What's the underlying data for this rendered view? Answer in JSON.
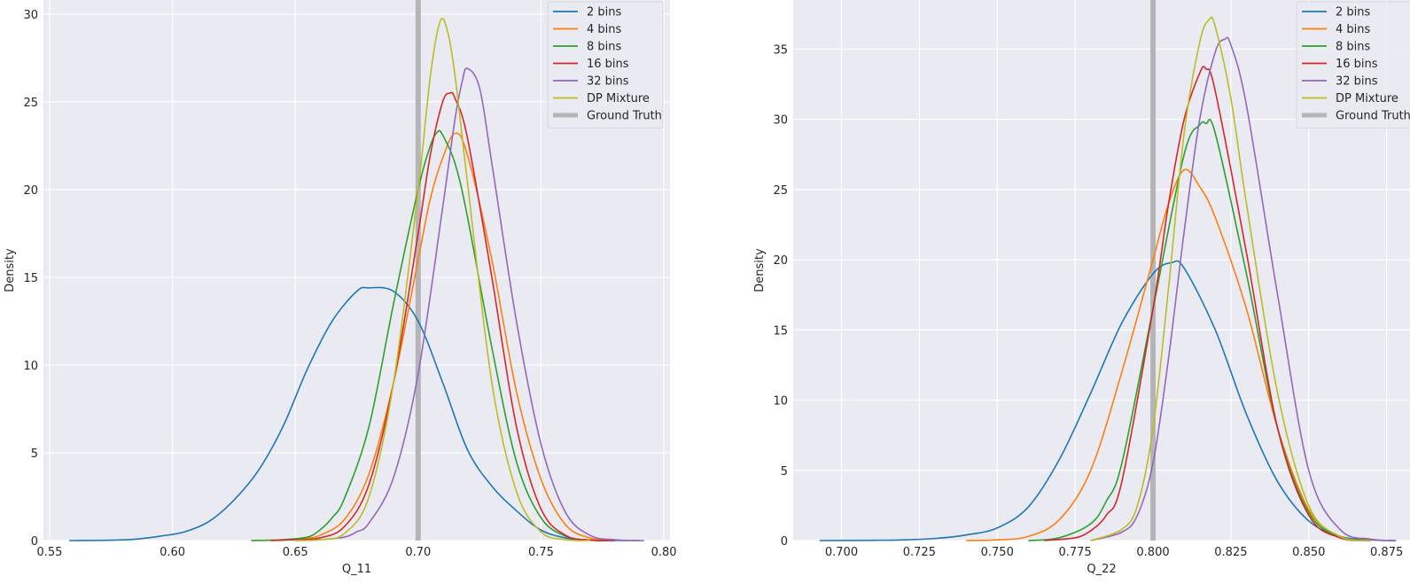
{
  "chart_data": [
    {
      "type": "line",
      "title": "",
      "xlabel": "Q_11",
      "ylabel": "Density",
      "xlim": [
        0.5475,
        0.8025
      ],
      "ylim": [
        0,
        30.8
      ],
      "xticks": [
        0.55,
        0.6,
        0.65,
        0.7,
        0.75,
        0.8
      ],
      "xtick_labels": [
        "0.55",
        "0.60",
        "0.65",
        "0.70",
        "0.75",
        "0.80"
      ],
      "yticks": [
        0,
        5,
        10,
        15,
        20,
        25,
        30
      ],
      "ytick_labels": [
        "0",
        "5",
        "10",
        "15",
        "20",
        "25",
        "30"
      ],
      "grid": true,
      "legend_position": "top-right",
      "vline": {
        "name": "Ground Truth",
        "x": 0.7,
        "color": "#b5b5b7"
      },
      "series": [
        {
          "name": "2 bins",
          "color": "#1f77b4",
          "x": [
            0.558,
            0.575,
            0.585,
            0.595,
            0.605,
            0.615,
            0.625,
            0.635,
            0.645,
            0.655,
            0.665,
            0.675,
            0.68,
            0.69,
            0.7,
            0.71,
            0.72,
            0.73,
            0.74,
            0.75,
            0.76,
            0.77,
            0.78,
            0.79
          ],
          "y": [
            0,
            0.02,
            0.08,
            0.25,
            0.5,
            1.1,
            2.3,
            4.0,
            6.5,
            9.8,
            12.5,
            14.2,
            14.4,
            14.2,
            12.5,
            9.0,
            5.2,
            3.1,
            1.7,
            0.6,
            0.15,
            0.03,
            0.01,
            0
          ]
        },
        {
          "name": "4 bins",
          "color": "#ff7f0e",
          "x": [
            0.635,
            0.645,
            0.655,
            0.66,
            0.67,
            0.68,
            0.69,
            0.7,
            0.705,
            0.71,
            0.715,
            0.72,
            0.73,
            0.74,
            0.75,
            0.76,
            0.77,
            0.78
          ],
          "y": [
            0,
            0.05,
            0.15,
            0.3,
            1.2,
            3.8,
            9.0,
            16.0,
            19.5,
            21.8,
            23.2,
            22.0,
            16.0,
            8.5,
            3.5,
            0.9,
            0.15,
            0
          ]
        },
        {
          "name": "8 bins",
          "color": "#2ca02c",
          "x": [
            0.632,
            0.645,
            0.655,
            0.66,
            0.665,
            0.67,
            0.68,
            0.69,
            0.7,
            0.705,
            0.708,
            0.71,
            0.715,
            0.72,
            0.73,
            0.74,
            0.75,
            0.76,
            0.77,
            0.78
          ],
          "y": [
            0,
            0.05,
            0.2,
            0.6,
            1.3,
            2.4,
            6.5,
            13.5,
            20.0,
            22.5,
            23.3,
            23.1,
            21.5,
            18.5,
            11.0,
            4.5,
            1.3,
            0.25,
            0.03,
            0
          ]
        },
        {
          "name": "16 bins",
          "color": "#d62728",
          "x": [
            0.64,
            0.65,
            0.66,
            0.67,
            0.68,
            0.69,
            0.7,
            0.705,
            0.71,
            0.713,
            0.715,
            0.72,
            0.73,
            0.74,
            0.75,
            0.76,
            0.77,
            0.78
          ],
          "y": [
            0,
            0.05,
            0.15,
            0.8,
            3.2,
            9.0,
            17.5,
            22.0,
            25.0,
            25.5,
            25.2,
            23.0,
            15.0,
            6.5,
            1.8,
            0.3,
            0.03,
            0
          ]
        },
        {
          "name": "32 bins",
          "color": "#9467bd",
          "x": [
            0.65,
            0.66,
            0.67,
            0.675,
            0.68,
            0.69,
            0.7,
            0.71,
            0.715,
            0.718,
            0.72,
            0.725,
            0.73,
            0.74,
            0.75,
            0.76,
            0.77,
            0.78,
            0.792
          ],
          "y": [
            0,
            0.05,
            0.2,
            0.5,
            1.0,
            3.6,
            9.5,
            19.0,
            24.0,
            26.2,
            26.9,
            25.8,
            21.5,
            12.5,
            5.5,
            1.6,
            0.3,
            0.05,
            0
          ]
        },
        {
          "name": "DP Mixture",
          "color": "#bcbd22",
          "x": [
            0.65,
            0.66,
            0.67,
            0.68,
            0.69,
            0.7,
            0.705,
            0.709,
            0.712,
            0.715,
            0.72,
            0.73,
            0.74,
            0.75,
            0.76,
            0.77
          ],
          "y": [
            0,
            0.05,
            0.4,
            2.5,
            9.0,
            20.0,
            26.5,
            29.6,
            29.0,
            26.5,
            20.5,
            9.0,
            2.8,
            0.5,
            0.05,
            0
          ]
        }
      ]
    },
    {
      "type": "line",
      "title": "",
      "xlabel": "Q_22",
      "ylabel": "Density",
      "xlim": [
        0.6845,
        0.8825
      ],
      "ylim": [
        0,
        38.5
      ],
      "xticks": [
        0.7,
        0.725,
        0.75,
        0.775,
        0.8,
        0.825,
        0.85,
        0.875
      ],
      "xtick_labels": [
        "0.700",
        "0.725",
        "0.750",
        "0.775",
        "0.800",
        "0.825",
        "0.850",
        "0.875"
      ],
      "yticks": [
        0,
        5,
        10,
        15,
        20,
        25,
        30,
        35
      ],
      "ytick_labels": [
        "0",
        "5",
        "10",
        "15",
        "20",
        "25",
        "30",
        "35"
      ],
      "grid": true,
      "legend_position": "top-right",
      "vline": {
        "name": "Ground Truth",
        "x": 0.8,
        "color": "#b5b5b7"
      },
      "series": [
        {
          "name": "2 bins",
          "color": "#1f77b4",
          "x": [
            0.693,
            0.71,
            0.72,
            0.73,
            0.74,
            0.75,
            0.76,
            0.77,
            0.78,
            0.79,
            0.8,
            0.806,
            0.81,
            0.82,
            0.83,
            0.84,
            0.85,
            0.86,
            0.87,
            0.878
          ],
          "y": [
            0,
            0.02,
            0.05,
            0.15,
            0.4,
            0.9,
            2.4,
            5.8,
            10.5,
            15.5,
            19.0,
            19.8,
            19.4,
            15.0,
            9.0,
            4.2,
            1.4,
            0.3,
            0.05,
            0
          ]
        },
        {
          "name": "4 bins",
          "color": "#ff7f0e",
          "x": [
            0.74,
            0.75,
            0.76,
            0.77,
            0.78,
            0.79,
            0.8,
            0.805,
            0.81,
            0.815,
            0.82,
            0.83,
            0.84,
            0.85,
            0.86,
            0.87
          ],
          "y": [
            0,
            0.05,
            0.3,
            1.5,
            5.0,
            12.0,
            20.0,
            24.0,
            26.4,
            25.2,
            23.0,
            16.5,
            8.0,
            2.2,
            0.3,
            0
          ]
        },
        {
          "name": "8 bins",
          "color": "#2ca02c",
          "x": [
            0.76,
            0.77,
            0.78,
            0.785,
            0.79,
            0.8,
            0.81,
            0.815,
            0.817,
            0.82,
            0.83,
            0.84,
            0.85,
            0.86,
            0.87
          ],
          "y": [
            0,
            0.2,
            1.2,
            2.8,
            5.5,
            16.5,
            27.5,
            29.6,
            29.7,
            29.0,
            19.0,
            8.0,
            2.0,
            0.3,
            0
          ]
        },
        {
          "name": "16 bins",
          "color": "#d62728",
          "x": [
            0.765,
            0.775,
            0.78,
            0.785,
            0.79,
            0.8,
            0.805,
            0.81,
            0.815,
            0.817,
            0.82,
            0.83,
            0.84,
            0.85,
            0.86,
            0.87
          ],
          "y": [
            0,
            0.2,
            0.7,
            1.8,
            4.2,
            16.5,
            24.0,
            30.0,
            33.3,
            33.6,
            32.0,
            20.5,
            8.0,
            1.8,
            0.2,
            0
          ]
        },
        {
          "name": "32 bins",
          "color": "#9467bd",
          "x": [
            0.78,
            0.79,
            0.795,
            0.8,
            0.805,
            0.81,
            0.815,
            0.82,
            0.823,
            0.825,
            0.83,
            0.84,
            0.85,
            0.86,
            0.87,
            0.878
          ],
          "y": [
            0,
            0.6,
            1.8,
            5.5,
            13.0,
            22.0,
            30.0,
            34.8,
            35.7,
            35.3,
            31.0,
            17.5,
            5.0,
            0.8,
            0.1,
            0
          ]
        },
        {
          "name": "DP Mixture",
          "color": "#bcbd22",
          "x": [
            0.78,
            0.79,
            0.795,
            0.8,
            0.805,
            0.81,
            0.815,
            0.818,
            0.82,
            0.825,
            0.83,
            0.84,
            0.85,
            0.86,
            0.87
          ],
          "y": [
            0,
            0.8,
            2.5,
            8.0,
            18.0,
            29.0,
            35.5,
            37.1,
            36.6,
            31.5,
            24.0,
            10.5,
            2.5,
            0.3,
            0
          ]
        }
      ]
    }
  ]
}
